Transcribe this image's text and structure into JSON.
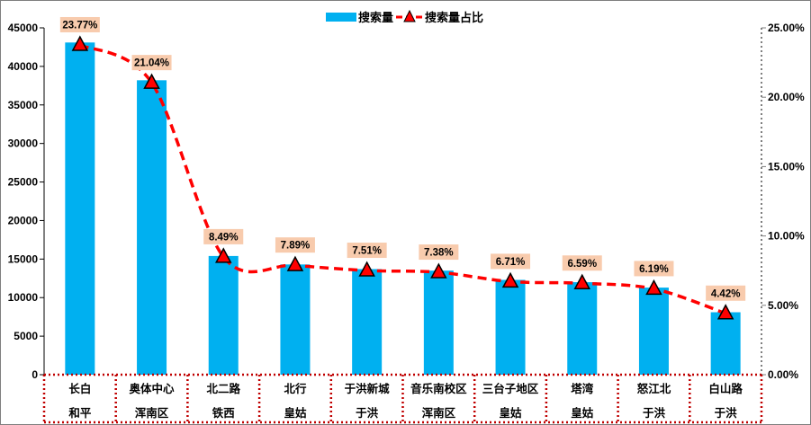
{
  "chart_data": {
    "type": "bar",
    "categories": [
      [
        "长白",
        "和平"
      ],
      [
        "奥体中心",
        "浑南区"
      ],
      [
        "北二路",
        "铁西"
      ],
      [
        "北行",
        "皇姑"
      ],
      [
        "于洪新城",
        "于洪"
      ],
      [
        "音乐南校区",
        "浑南区"
      ],
      [
        "三台子地区",
        "皇姑"
      ],
      [
        "塔湾",
        "皇姑"
      ],
      [
        "怒江北",
        "于洪"
      ],
      [
        "白山路",
        "于洪"
      ]
    ],
    "series": [
      {
        "name": "搜索量",
        "type": "bar",
        "axis": "left",
        "color": "#00b0f0",
        "values": [
          43100,
          38200,
          15400,
          14300,
          13700,
          13500,
          12300,
          12000,
          11300,
          8100
        ]
      },
      {
        "name": "搜索量占比",
        "type": "line",
        "axis": "right",
        "color": "#ff0000",
        "line_style": "dashed-smooth",
        "marker": "triangle",
        "values": [
          23.77,
          21.04,
          8.49,
          7.89,
          7.51,
          7.38,
          6.71,
          6.59,
          6.19,
          4.42
        ],
        "labels": [
          "23.77%",
          "21.04%",
          "8.49%",
          "7.89%",
          "7.51%",
          "7.38%",
          "6.71%",
          "6.59%",
          "6.19%",
          "4.42%"
        ],
        "label_bg": "#f8cbad"
      }
    ],
    "y_left": {
      "min": 0,
      "max": 45000,
      "ticks": [
        "0",
        "5000",
        "10000",
        "15000",
        "20000",
        "25000",
        "30000",
        "35000",
        "40000",
        "45000"
      ]
    },
    "y_right": {
      "min": 0,
      "max": 25,
      "ticks": [
        "0.00%",
        "5.00%",
        "10.00%",
        "15.00%",
        "20.00%",
        "25.00%"
      ]
    },
    "grid": false,
    "legend": "top-center"
  }
}
